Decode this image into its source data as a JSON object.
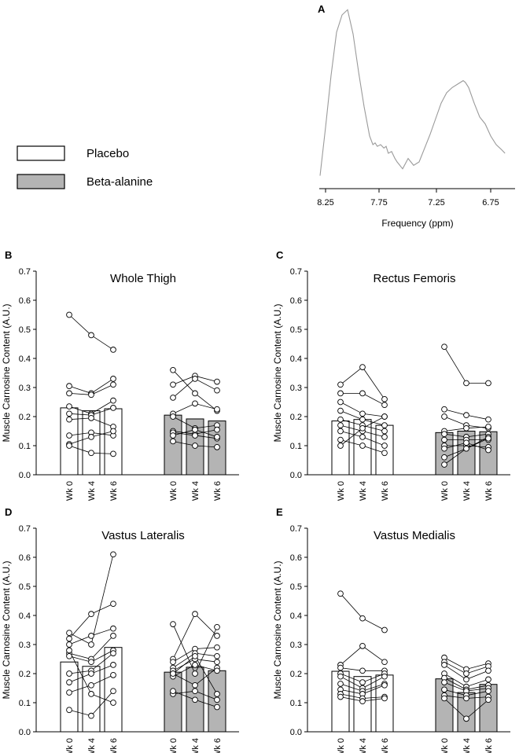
{
  "legend": {
    "items": [
      {
        "label": "Placebo",
        "color": "#ffffff"
      },
      {
        "label": "Beta-alanine",
        "color": "#b4b4b4"
      }
    ]
  },
  "spectrum": {
    "panel_label": "A",
    "xlabel": "Frequency (ppm)",
    "ticks": [
      "8.25",
      "7.75",
      "7.25",
      "6.75"
    ],
    "line_color": "#9a9a9a"
  },
  "chart_data": [
    {
      "type": "line",
      "panel": "A",
      "title": "",
      "xlabel": "Frequency (ppm)",
      "ylabel": "",
      "xlim": [
        8.3,
        6.6
      ],
      "x": [
        8.3,
        8.25,
        8.2,
        8.15,
        8.1,
        8.05,
        8.0,
        7.95,
        7.9,
        7.85,
        7.82,
        7.8,
        7.78,
        7.75,
        7.72,
        7.7,
        7.68,
        7.65,
        7.62,
        7.6,
        7.55,
        7.5,
        7.45,
        7.4,
        7.35,
        7.3,
        7.25,
        7.2,
        7.15,
        7.1,
        7.05,
        7.0,
        6.98,
        6.95,
        6.9,
        6.85,
        6.8,
        6.75,
        6.7,
        6.65,
        6.62
      ],
      "y": [
        0.02,
        0.3,
        0.6,
        0.85,
        0.95,
        0.98,
        0.84,
        0.62,
        0.42,
        0.25,
        0.2,
        0.21,
        0.19,
        0.2,
        0.18,
        0.19,
        0.15,
        0.16,
        0.12,
        0.1,
        0.06,
        0.12,
        0.08,
        0.1,
        0.18,
        0.26,
        0.35,
        0.44,
        0.5,
        0.53,
        0.55,
        0.57,
        0.56,
        0.53,
        0.44,
        0.36,
        0.32,
        0.25,
        0.2,
        0.17,
        0.15
      ]
    },
    {
      "type": "bar",
      "panel": "B",
      "title": "Whole Thigh",
      "ylabel": "Muscle Carnosine Content (A.U.)",
      "ylim": [
        0,
        0.7
      ],
      "yticks": [
        "0.0",
        "0.1",
        "0.2",
        "0.3",
        "0.4",
        "0.5",
        "0.6",
        "0.7"
      ],
      "categories": [
        "Wk 0",
        "Wk 4",
        "Wk 6"
      ],
      "series": [
        {
          "name": "Placebo",
          "bars": [
            0.23,
            0.22,
            0.227
          ],
          "individuals": [
            [
              0.55,
              0.48,
              0.43
            ],
            [
              0.305,
              0.28,
              0.33
            ],
            [
              0.28,
              0.275,
              0.31
            ],
            [
              0.235,
              0.21,
              0.255
            ],
            [
              0.21,
              0.205,
              0.23
            ],
            [
              0.19,
              0.195,
              0.165
            ],
            [
              0.135,
              0.145,
              0.135
            ],
            [
              0.105,
              0.13,
              0.15
            ],
            [
              0.1,
              0.075,
              0.072
            ]
          ]
        },
        {
          "name": "Beta-alanine",
          "bars": [
            0.205,
            0.192,
            0.185
          ],
          "individuals": [
            [
              0.36,
              0.28,
              0.22
            ],
            [
              0.31,
              0.34,
              0.32
            ],
            [
              0.265,
              0.33,
              0.29
            ],
            [
              0.21,
              0.245,
              0.225
            ],
            [
              0.2,
              0.16,
              0.17
            ],
            [
              0.15,
              0.14,
              0.155
            ],
            [
              0.145,
              0.135,
              0.125
            ],
            [
              0.135,
              0.155,
              0.13
            ],
            [
              0.115,
              0.1,
              0.095
            ]
          ]
        }
      ]
    },
    {
      "type": "bar",
      "panel": "C",
      "title": "Rectus Femoris",
      "ylabel": "Muscle Carnosine Content (A.U.)",
      "ylim": [
        0,
        0.7
      ],
      "yticks": [
        "0.0",
        "0.1",
        "0.2",
        "0.3",
        "0.4",
        "0.5",
        "0.6",
        "0.7"
      ],
      "categories": [
        "Wk 0",
        "Wk 4",
        "Wk 6"
      ],
      "series": [
        {
          "name": "Placebo",
          "bars": [
            0.185,
            0.19,
            0.17
          ],
          "individuals": [
            [
              0.31,
              0.37,
              0.26
            ],
            [
              0.28,
              0.28,
              0.24
            ],
            [
              0.25,
              0.21,
              0.2
            ],
            [
              0.22,
              0.19,
              0.17
            ],
            [
              0.19,
              0.17,
              0.15
            ],
            [
              0.17,
              0.15,
              0.13
            ],
            [
              0.15,
              0.13,
              0.1
            ],
            [
              0.12,
              0.1,
              0.075
            ],
            [
              0.1,
              0.16,
              0.2
            ]
          ]
        },
        {
          "name": "Beta-alanine",
          "bars": [
            0.145,
            0.15,
            0.148
          ],
          "individuals": [
            [
              0.44,
              0.315,
              0.315
            ],
            [
              0.225,
              0.205,
              0.19
            ],
            [
              0.2,
              0.17,
              0.16
            ],
            [
              0.15,
              0.16,
              0.165
            ],
            [
              0.14,
              0.13,
              0.14
            ],
            [
              0.12,
              0.12,
              0.12
            ],
            [
              0.1,
              0.1,
              0.095
            ],
            [
              0.09,
              0.11,
              0.085
            ],
            [
              0.06,
              0.09,
              0.13
            ],
            [
              0.035,
              0.09,
              0.125
            ]
          ]
        }
      ]
    },
    {
      "type": "bar",
      "panel": "D",
      "title": "Vastus Lateralis",
      "ylabel": "Muscle Carnosine Content (A.U.)",
      "ylim": [
        0,
        0.7
      ],
      "yticks": [
        "0.0",
        "0.1",
        "0.2",
        "0.3",
        "0.4",
        "0.5",
        "0.6",
        "0.7"
      ],
      "categories": [
        "Wk 0",
        "Wk 4",
        "Wk 6"
      ],
      "series": [
        {
          "name": "Placebo",
          "bars": [
            0.24,
            0.225,
            0.29
          ],
          "individuals": [
            [
              0.34,
              0.3,
              0.61
            ],
            [
              0.32,
              0.405,
              0.44
            ],
            [
              0.3,
              0.33,
              0.355
            ],
            [
              0.27,
              0.25,
              0.33
            ],
            [
              0.26,
              0.24,
              0.28
            ],
            [
              0.2,
              0.21,
              0.27
            ],
            [
              0.17,
              0.2,
              0.23
            ],
            [
              0.135,
              0.16,
              0.195
            ],
            [
              0.075,
              0.055,
              0.14
            ],
            [
              0.28,
              0.13,
              0.1
            ]
          ]
        },
        {
          "name": "Beta-alanine",
          "bars": [
            0.205,
            0.222,
            0.21
          ],
          "individuals": [
            [
              0.37,
              0.2,
              0.36
            ],
            [
              0.25,
              0.405,
              0.33
            ],
            [
              0.24,
              0.285,
              0.29
            ],
            [
              0.22,
              0.27,
              0.26
            ],
            [
              0.21,
              0.25,
              0.24
            ],
            [
              0.2,
              0.16,
              0.22
            ],
            [
              0.19,
              0.23,
              0.21
            ],
            [
              0.13,
              0.14,
              0.11
            ],
            [
              0.14,
              0.11,
              0.085
            ],
            [
              0.2,
              0.26,
              0.13
            ]
          ]
        }
      ]
    },
    {
      "type": "bar",
      "panel": "E",
      "title": "Vastus Medialis",
      "ylabel": "Muscle Carnosine Content (A.U.)",
      "ylim": [
        0,
        0.7
      ],
      "yticks": [
        "0.0",
        "0.1",
        "0.2",
        "0.3",
        "0.4",
        "0.5",
        "0.6",
        "0.7"
      ],
      "categories": [
        "Wk 0",
        "Wk 4",
        "Wk 6"
      ],
      "series": [
        {
          "name": "Placebo",
          "bars": [
            0.208,
            0.19,
            0.195
          ],
          "individuals": [
            [
              0.475,
              0.39,
              0.35
            ],
            [
              0.23,
              0.295,
              0.24
            ],
            [
              0.22,
              0.21,
              0.21
            ],
            [
              0.2,
              0.17,
              0.2
            ],
            [
              0.19,
              0.15,
              0.19
            ],
            [
              0.165,
              0.14,
              0.165
            ],
            [
              0.145,
              0.13,
              0.16
            ],
            [
              0.13,
              0.115,
              0.12
            ],
            [
              0.12,
              0.105,
              0.115
            ]
          ]
        },
        {
          "name": "Beta-alanine",
          "bars": [
            0.182,
            0.135,
            0.163
          ],
          "individuals": [
            [
              0.255,
              0.215,
              0.235
            ],
            [
              0.24,
              0.2,
              0.225
            ],
            [
              0.23,
              0.18,
              0.21
            ],
            [
              0.2,
              0.155,
              0.18
            ],
            [
              0.185,
              0.145,
              0.16
            ],
            [
              0.17,
              0.14,
              0.15
            ],
            [
              0.145,
              0.125,
              0.14
            ],
            [
              0.125,
              0.115,
              0.12
            ],
            [
              0.115,
              0.045,
              0.11
            ]
          ]
        }
      ]
    }
  ]
}
